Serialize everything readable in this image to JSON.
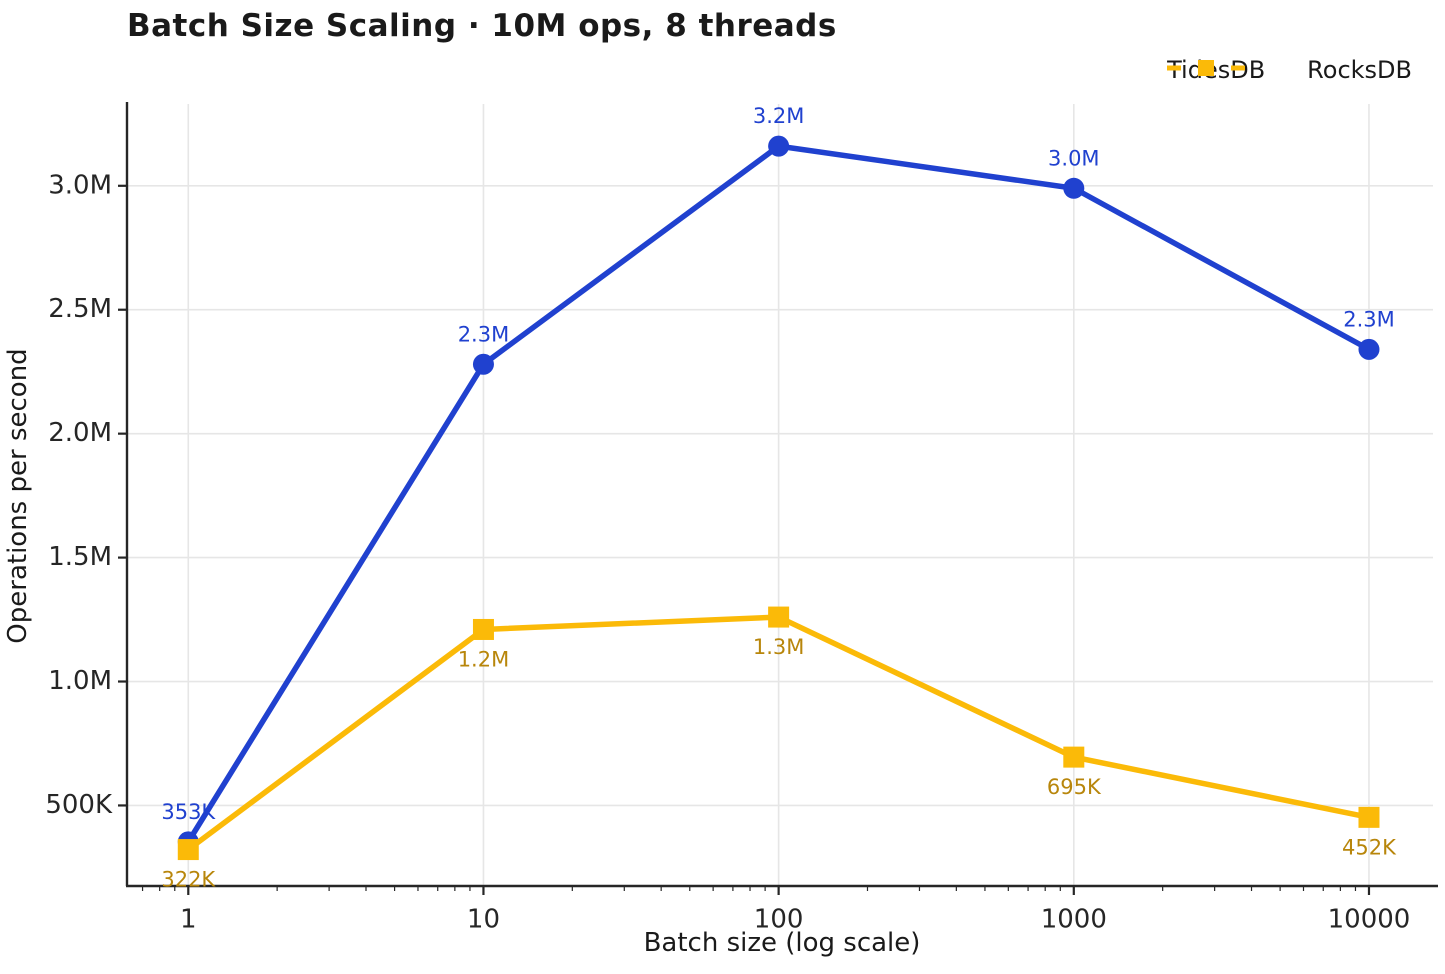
{
  "title": "Batch Size Scaling · 10M ops, 8 threads",
  "colors": {
    "tidesdb_blue": "#2041cf",
    "rocksdb_gold": "#fbba08",
    "rocksdb_label_gold": "#b8860b",
    "text_dark": "#1a1a1a",
    "tick_text": "#262626",
    "grid": "#e6e6e6",
    "spine": "#262626",
    "background": "#ffffff"
  },
  "chart_data": {
    "type": "line",
    "title": "Batch Size Scaling · 10M ops, 8 threads",
    "xlabel": "Batch size (log scale)",
    "ylabel": "Operations per second",
    "x_scale": "log",
    "x": [
      1,
      10,
      100,
      1000,
      10000
    ],
    "x_tick_labels": [
      "1",
      "10",
      "100",
      "1000",
      "10000"
    ],
    "y_ticks": [
      500000,
      1000000,
      1500000,
      2000000,
      2500000,
      3000000
    ],
    "y_tick_labels": [
      "500K",
      "1.0M",
      "1.5M",
      "2.0M",
      "2.5M",
      "3.0M"
    ],
    "xlim": [
      0.62,
      17000
    ],
    "ylim": [
      175000,
      3330000
    ],
    "grid": true,
    "legend_position": "top-right",
    "series": [
      {
        "name": "TidesDB",
        "color": "#2041cf",
        "marker": "circle",
        "values": [
          353000,
          2280000,
          3160000,
          2990000,
          2340000
        ],
        "point_labels": [
          "353K",
          "2.3M",
          "3.2M",
          "3.0M",
          "2.3M"
        ],
        "label_position": "above",
        "label_color": "#2041cf"
      },
      {
        "name": "RocksDB",
        "color": "#fbba08",
        "marker": "square",
        "values": [
          322000,
          1210000,
          1260000,
          695000,
          452000
        ],
        "point_labels": [
          "322K",
          "1.2M",
          "1.3M",
          "695K",
          "452K"
        ],
        "label_position": "below",
        "label_color": "#b8860b"
      }
    ]
  }
}
